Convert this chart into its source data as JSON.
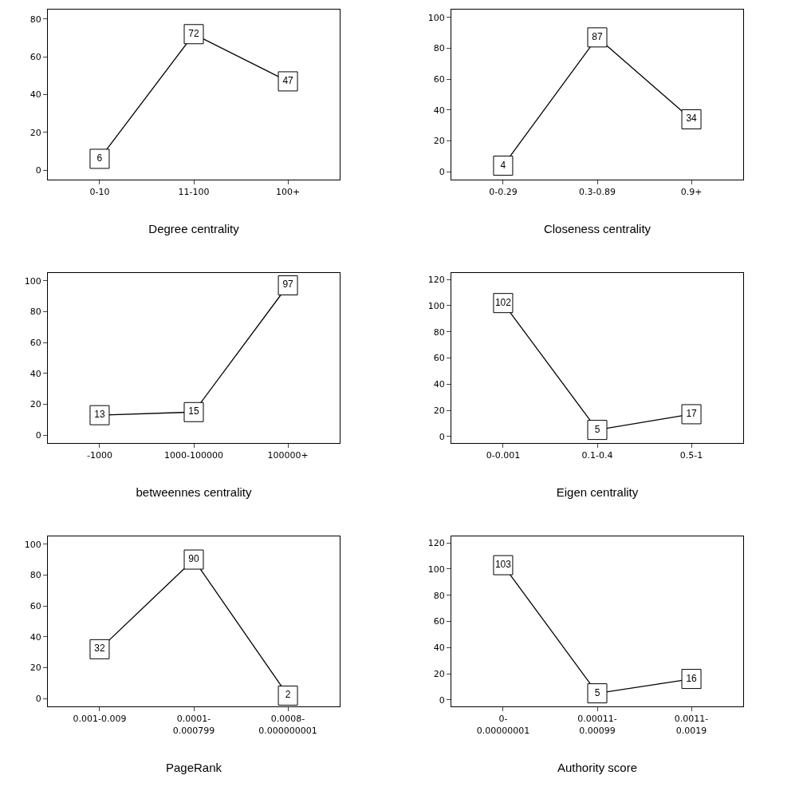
{
  "chart_data": [
    {
      "type": "line",
      "xlabel": "Degree centrality",
      "categories": [
        "0-10",
        "11-100",
        "100+"
      ],
      "values": [
        6,
        72,
        47
      ],
      "marker": "square",
      "ylim": [
        -5,
        85
      ],
      "yticks": [
        0,
        20,
        40,
        60,
        80
      ],
      "data_labels": true,
      "line_style": "solid",
      "color": "#000000"
    },
    {
      "type": "line",
      "xlabel": "Closeness centrality",
      "categories": [
        "0-0.29",
        "0.3-0.89",
        "0.9+"
      ],
      "values": [
        4,
        87,
        34
      ],
      "marker": "square",
      "ylim": [
        -5,
        105
      ],
      "yticks": [
        0,
        20,
        40,
        60,
        80,
        100
      ],
      "data_labels": true,
      "line_style": "solid",
      "color": "#000000"
    },
    {
      "type": "line",
      "xlabel": "betweennes centrality",
      "categories": [
        "-1000",
        "1000-100000",
        "100000+"
      ],
      "values": [
        13,
        15,
        97
      ],
      "marker": "square",
      "ylim": [
        -5,
        105
      ],
      "yticks": [
        0,
        20,
        40,
        60,
        80,
        100
      ],
      "data_labels": true,
      "line_style": "solid",
      "color": "#000000"
    },
    {
      "type": "line",
      "xlabel": "Eigen centrality",
      "categories": [
        "0-0.001",
        "0.1-0.4",
        "0.5-1"
      ],
      "values": [
        102,
        5,
        17
      ],
      "marker": "square",
      "ylim": [
        -5,
        125
      ],
      "yticks": [
        0,
        20,
        40,
        60,
        80,
        100,
        120
      ],
      "data_labels": true,
      "line_style": "solid",
      "color": "#000000"
    },
    {
      "type": "line",
      "xlabel": "PageRank",
      "categories": [
        "0.001-0.009",
        "0.0001-\n0.000799",
        "0.0008-\n0.000000001"
      ],
      "values": [
        32,
        90,
        2
      ],
      "marker": "square",
      "ylim": [
        -5,
        105
      ],
      "yticks": [
        0,
        20,
        40,
        60,
        80,
        100
      ],
      "data_labels": true,
      "line_style": "solid",
      "color": "#000000"
    },
    {
      "type": "line",
      "xlabel": "Authority score",
      "categories": [
        "0-\n0.00000001",
        "0.00011-\n0.00099",
        "0.0011-\n0.0019"
      ],
      "values": [
        103,
        5,
        16
      ],
      "marker": "square",
      "ylim": [
        -5,
        125
      ],
      "yticks": [
        0,
        20,
        40,
        60,
        80,
        100,
        120
      ],
      "data_labels": true,
      "line_style": "solid",
      "color": "#000000"
    }
  ]
}
